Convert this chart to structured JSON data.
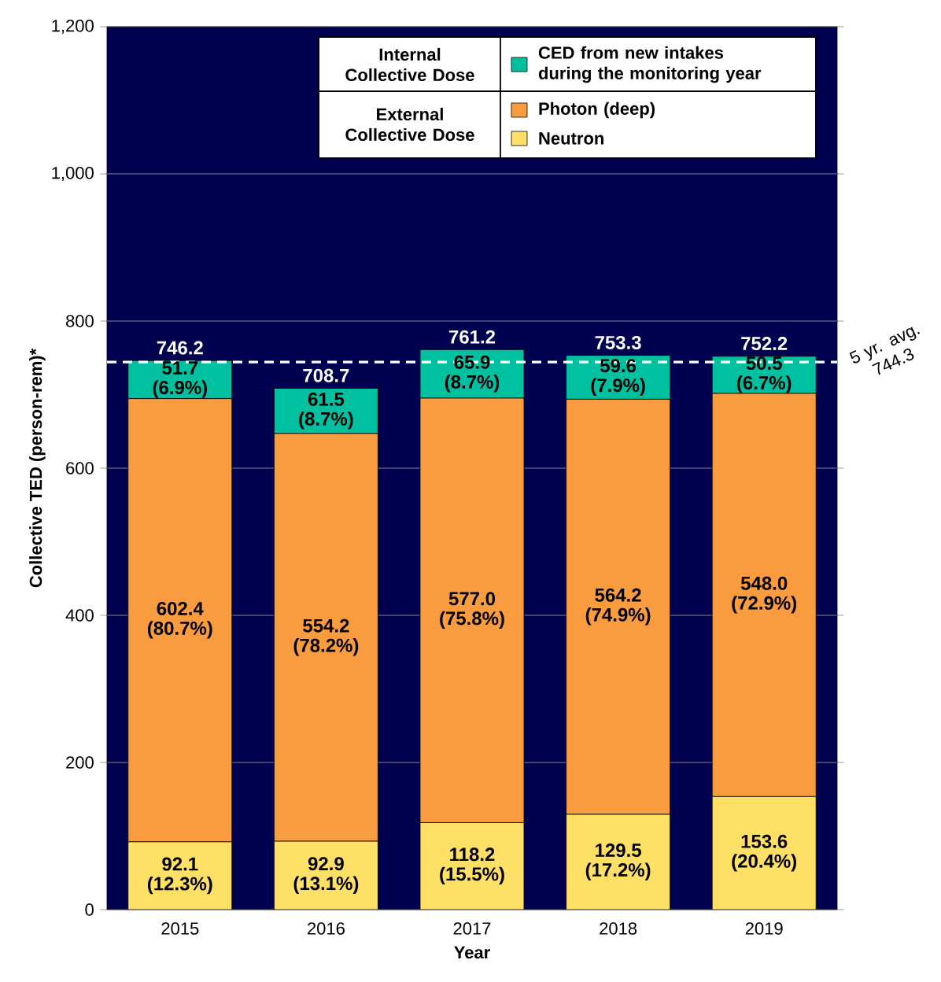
{
  "chart_data": {
    "type": "bar",
    "stacked": true,
    "xlabel": "Year",
    "ylabel": "Collective TED (person-rem)*",
    "categories": [
      "2015",
      "2016",
      "2017",
      "2018",
      "2019"
    ],
    "series": [
      {
        "name": "Neutron",
        "color": "#ffe066",
        "values": [
          92.1,
          92.9,
          118.2,
          129.5,
          153.6
        ],
        "value_labels": [
          "92.1 (12.3%)",
          "92.9 (13.1%)",
          "118.2 (15.5%)",
          "129.5 (17.2%)",
          "153.6 (20.4%)"
        ]
      },
      {
        "name": "Photon (deep)",
        "color": "#f99b3f",
        "values": [
          602.4,
          554.2,
          577.0,
          564.2,
          548.0
        ],
        "value_labels": [
          "602.4 (80.7%)",
          "554.2 (78.2%)",
          "577.0 (75.8%)",
          "564.2 (74.9%)",
          "548.0 (72.9%)"
        ]
      },
      {
        "name": "CED from new intakes during the monitoring year",
        "color": "#00c0a0",
        "values": [
          51.7,
          61.5,
          65.9,
          59.6,
          50.5
        ],
        "value_labels": [
          "51.7 (6.9%)",
          "61.5 (8.7%)",
          "65.9 (8.7%)",
          "59.6 (7.9%)",
          "50.5 (6.7%)"
        ]
      }
    ],
    "totals": [
      "746.2",
      "708.7",
      "761.2",
      "753.3",
      "752.2"
    ],
    "ylim": [
      0,
      1200
    ],
    "yticks": [
      0,
      200,
      400,
      600,
      800,
      {
        "value": 1000,
        "label": "1,000"
      },
      {
        "value": 1200,
        "label": "1,200"
      }
    ],
    "grid": "y",
    "legend": "top right",
    "annotations": [
      "Internal Collective Dose",
      "External Collective Dose"
    ],
    "ref_lines": [
      {
        "axis": "y",
        "value": 744.3,
        "label": "5 yr. avg. 744.3",
        "color": "#ffffff",
        "line_style": "dashed"
      }
    ]
  }
}
